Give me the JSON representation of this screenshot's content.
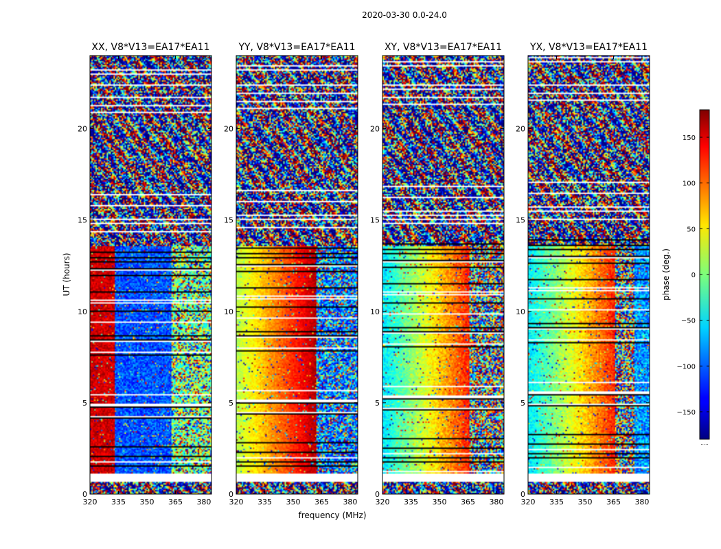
{
  "figure": {
    "suptitle": "2020-03-30 0.0-24.0"
  },
  "chart_data": {
    "type": "heatmap",
    "suptitle": "2020-03-30 0.0-24.0",
    "xlabel": "frequency (MHz)",
    "ylabel": "UT (hours)",
    "xlim": [
      320,
      384
    ],
    "ylim": [
      0,
      24
    ],
    "xticks": [
      320,
      335,
      350,
      365,
      380
    ],
    "yticks": [
      0,
      5,
      10,
      15,
      20
    ],
    "panels": [
      {
        "title": "XX, V8*V13=EA17*EA11",
        "pol": "XX",
        "mode": "xx"
      },
      {
        "title": "YY, V8*V13=EA17*EA11",
        "pol": "YY",
        "mode": "yy"
      },
      {
        "title": "XY, V8*V13=EA17*EA11",
        "pol": "XY",
        "mode": "xy"
      },
      {
        "title": "YX, V8*V13=EA17*EA11",
        "pol": "YX",
        "mode": "yx"
      }
    ],
    "colorbar": {
      "label": "phase (deg.)",
      "range": [
        -180,
        180
      ],
      "ticks": [
        -150,
        -100,
        -50,
        0,
        50,
        100,
        150
      ],
      "colormap": "jet",
      "extra_label": "....."
    },
    "blank_time_ranges": [
      [
        0.65,
        1.1
      ],
      [
        22.3,
        22.4
      ],
      [
        15.0,
        15.1
      ]
    ]
  }
}
